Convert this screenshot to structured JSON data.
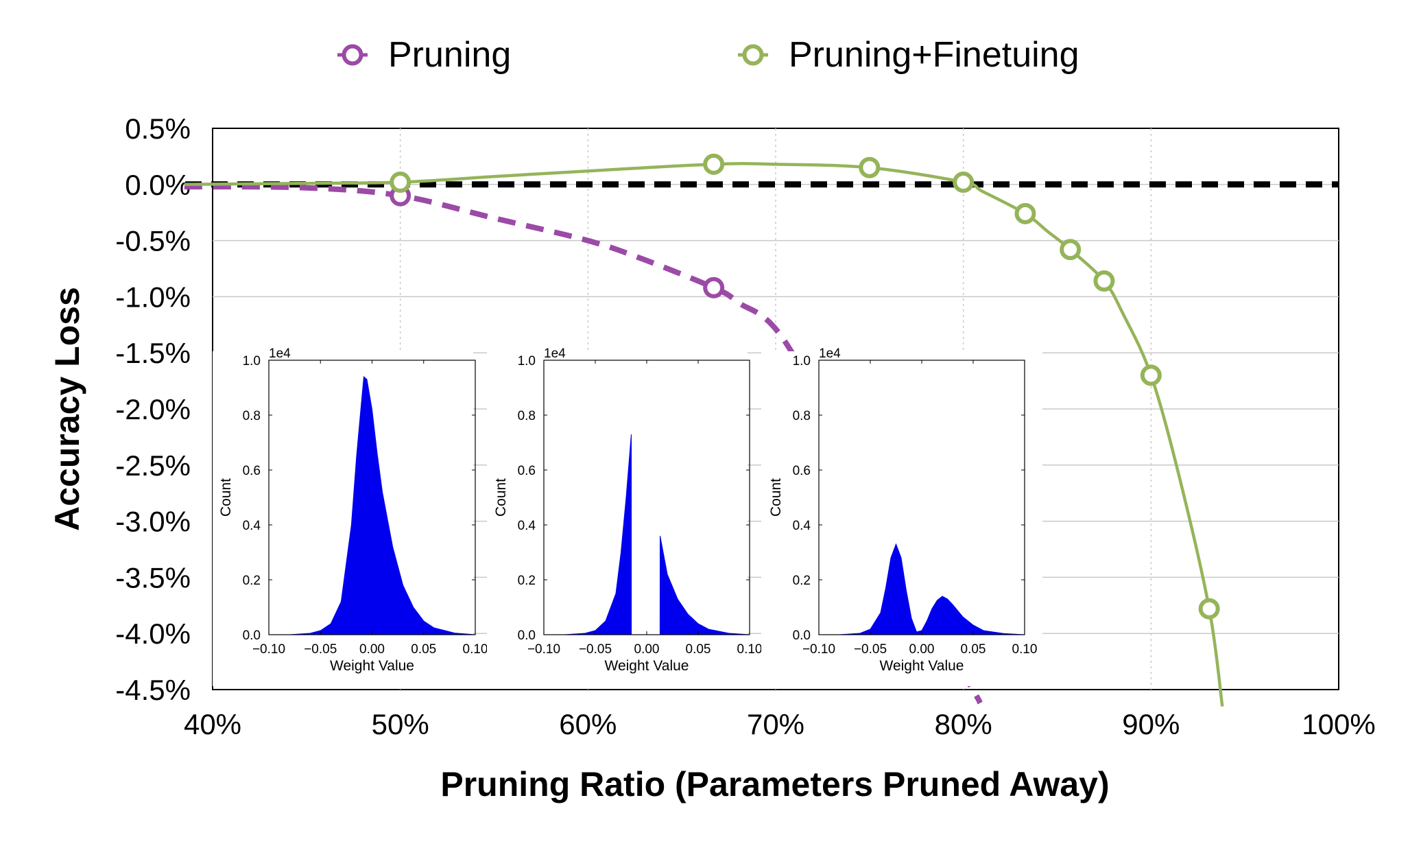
{
  "chart_data": {
    "type": "line",
    "title": "",
    "xlabel": "Pruning Ratio (Parameters Pruned Away)",
    "ylabel": "Accuracy Loss",
    "xlim": [
      40,
      100
    ],
    "ylim": [
      -4.5,
      0.5
    ],
    "x_ticks": [
      "40%",
      "50%",
      "60%",
      "70%",
      "80%",
      "90%",
      "100%"
    ],
    "y_ticks": [
      "0.5%",
      "0.0%",
      "-0.5%",
      "-1.0%",
      "-1.5%",
      "-2.0%",
      "-2.5%",
      "-3.0%",
      "-3.5%",
      "-4.0%",
      "-4.5%"
    ],
    "grid": true,
    "legend_position": "top",
    "reference_line": {
      "y": 0.0,
      "style": "dashed",
      "color": "#000000"
    },
    "series": [
      {
        "name": "Pruning",
        "color": "#9b4aa6",
        "line_style": "dashed",
        "marker": "open-circle",
        "x": [
          50,
          66.7
        ],
        "y": [
          -0.1,
          -0.92
        ],
        "curve_x": [
          38.5,
          45,
          50,
          55,
          60,
          63,
          66.7,
          68,
          70.5,
          75,
          78,
          80.5,
          80.9
        ],
        "curve_y": [
          -0.02,
          -0.03,
          -0.1,
          -0.3,
          -0.5,
          -0.67,
          -0.92,
          -1.05,
          -1.4,
          -2.8,
          -3.8,
          -4.5,
          -4.62
        ]
      },
      {
        "name": "Pruning+Finetuing",
        "color": "#95b45a",
        "line_style": "solid",
        "marker": "open-circle",
        "x": [
          50,
          66.7,
          75,
          80,
          83.3,
          85.7,
          87.5,
          90,
          93.1
        ],
        "y": [
          0.02,
          0.18,
          0.15,
          0.02,
          -0.26,
          -0.58,
          -0.86,
          -1.7,
          -3.78
        ],
        "curve_x": [
          38.5,
          45,
          50,
          55,
          60,
          66.7,
          70,
          75,
          80,
          81,
          83.3,
          84.5,
          85.7,
          87.5,
          88.5,
          90,
          91.5,
          93.1,
          93.8
        ],
        "curve_y": [
          0.0,
          0.01,
          0.02,
          0.07,
          0.12,
          0.18,
          0.18,
          0.15,
          0.02,
          -0.06,
          -0.26,
          -0.42,
          -0.58,
          -0.86,
          -1.15,
          -1.7,
          -2.6,
          -3.78,
          -4.65
        ]
      }
    ],
    "insets": [
      {
        "type": "histogram",
        "exponent_label": "1e4",
        "xlabel": "Weight Value",
        "ylabel": "Count",
        "xlim": [
          -0.1,
          0.1
        ],
        "ylim": [
          0,
          1.0
        ],
        "x_ticks": [
          "−0.10",
          "−0.05",
          "0.00",
          "0.05",
          "0.10"
        ],
        "y_ticks": [
          "0.0",
          "0.2",
          "0.4",
          "0.6",
          "0.8",
          "1.0"
        ],
        "color": "#0000ee",
        "x": [
          -0.1,
          -0.08,
          -0.06,
          -0.05,
          -0.04,
          -0.03,
          -0.02,
          -0.015,
          -0.01,
          -0.008,
          -0.005,
          0.0,
          0.005,
          0.01,
          0.02,
          0.03,
          0.04,
          0.05,
          0.06,
          0.08,
          0.1
        ],
        "y": [
          0.0,
          0.0,
          0.005,
          0.015,
          0.04,
          0.12,
          0.4,
          0.65,
          0.86,
          0.94,
          0.93,
          0.82,
          0.66,
          0.52,
          0.32,
          0.18,
          0.1,
          0.05,
          0.025,
          0.006,
          0.0
        ]
      },
      {
        "type": "histogram",
        "exponent_label": "1e4",
        "xlabel": "Weight Value",
        "ylabel": "Count",
        "xlim": [
          -0.1,
          0.1
        ],
        "ylim": [
          0,
          1.0
        ],
        "x_ticks": [
          "−0.10",
          "−0.05",
          "0.00",
          "0.05",
          "0.10"
        ],
        "y_ticks": [
          "0.0",
          "0.2",
          "0.4",
          "0.6",
          "0.8",
          "1.0"
        ],
        "color": "#0000ee",
        "x": [
          -0.1,
          -0.08,
          -0.06,
          -0.05,
          -0.04,
          -0.03,
          -0.025,
          -0.02,
          -0.015,
          -0.0149,
          0.0129,
          0.013,
          0.02,
          0.03,
          0.04,
          0.05,
          0.06,
          0.08,
          0.1
        ],
        "y": [
          0.0,
          0.0,
          0.005,
          0.015,
          0.05,
          0.15,
          0.3,
          0.5,
          0.73,
          0.0,
          0.0,
          0.36,
          0.22,
          0.13,
          0.075,
          0.04,
          0.02,
          0.005,
          0.0
        ]
      },
      {
        "type": "histogram",
        "exponent_label": "1e4",
        "xlabel": "Weight Value",
        "ylabel": "Count",
        "xlim": [
          -0.1,
          0.1
        ],
        "ylim": [
          0,
          1.0
        ],
        "x_ticks": [
          "−0.10",
          "−0.05",
          "0.00",
          "0.05",
          "0.10"
        ],
        "y_ticks": [
          "0.0",
          "0.2",
          "0.4",
          "0.6",
          "0.8",
          "1.0"
        ],
        "color": "#0000ee",
        "x": [
          -0.1,
          -0.08,
          -0.06,
          -0.05,
          -0.04,
          -0.035,
          -0.03,
          -0.025,
          -0.02,
          -0.015,
          -0.01,
          -0.005,
          0.0,
          0.005,
          0.01,
          0.015,
          0.02,
          0.025,
          0.03,
          0.04,
          0.05,
          0.06,
          0.08,
          0.1
        ],
        "y": [
          0.0,
          0.0,
          0.005,
          0.02,
          0.08,
          0.17,
          0.28,
          0.33,
          0.28,
          0.16,
          0.06,
          0.01,
          0.015,
          0.05,
          0.095,
          0.125,
          0.14,
          0.13,
          0.11,
          0.065,
          0.035,
          0.015,
          0.004,
          0.0
        ]
      }
    ]
  }
}
